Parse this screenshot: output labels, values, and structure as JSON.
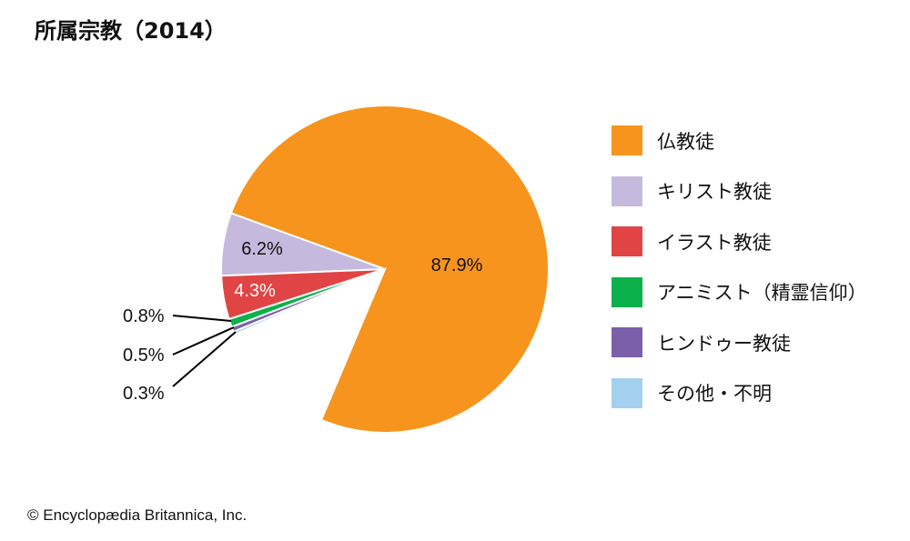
{
  "title": "所属宗教（2014）",
  "credit": "© Encyclopædia Britannica, Inc.",
  "chart_data": {
    "type": "pie",
    "title": "所属宗教（2014）",
    "slices": [
      {
        "label": "仏教徒",
        "value": 87.9,
        "value_label": "87.9%",
        "color": "#f7941d"
      },
      {
        "label": "キリスト教徒",
        "value": 6.2,
        "value_label": "6.2%",
        "color": "#c5badd"
      },
      {
        "label": "イラスト教徒",
        "value": 4.3,
        "value_label": "4.3%",
        "color": "#e04444"
      },
      {
        "label": "アニミスト（精霊信仰）",
        "value": 0.8,
        "value_label": "0.8%",
        "color": "#0cb14b"
      },
      {
        "label": "ヒンドゥー教徒",
        "value": 0.5,
        "value_label": "0.5%",
        "color": "#7b5fa8"
      },
      {
        "label": "その他・不明",
        "value": 0.3,
        "value_label": "0.3%",
        "color": "#a3d0ee"
      }
    ],
    "legend_placement": "right"
  }
}
